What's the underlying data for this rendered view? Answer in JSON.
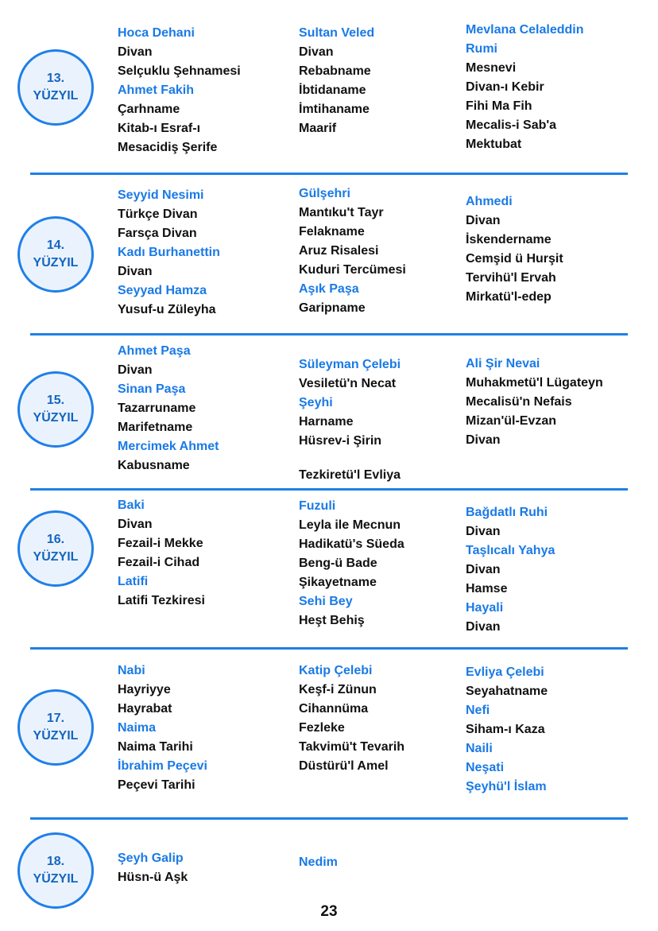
{
  "colors": {
    "accent": "#1f7fe8",
    "author_text": "#1a7ae6",
    "circle_fill": "#eaf3fd"
  },
  "sections": [
    {
      "num": "13.",
      "label": "YÜZYIL",
      "columns": [
        [
          {
            "t": "Hoca Dehani",
            "a": 1
          },
          {
            "t": "Divan"
          },
          {
            "t": "Selçuklu Şehnamesi"
          },
          {
            "t": "Ahmet Fakih",
            "a": 1
          },
          {
            "t": "Çarhname"
          },
          {
            "t": "Kitab-ı Esraf-ı"
          },
          {
            "t": "Mesacidiş Şerife"
          }
        ],
        [
          {
            "t": "Sultan Veled",
            "a": 1
          },
          {
            "t": "Divan"
          },
          {
            "t": "Rebabname"
          },
          {
            "t": "İbtidaname"
          },
          {
            "t": "İmtihaname"
          },
          {
            "t": "Maarif"
          }
        ],
        [
          {
            "t": "Mevlana Celaleddin Rumi",
            "a": 1,
            "w": 1
          },
          {
            "t": "Mesnevi"
          },
          {
            "t": "Divan-ı Kebir"
          },
          {
            "t": "Fihi Ma Fih"
          },
          {
            "t": "Mecalis-i Sab'a"
          },
          {
            "t": "Mektubat"
          }
        ]
      ]
    },
    {
      "num": "14.",
      "label": "YÜZYIL",
      "columns": [
        [
          {
            "t": "Seyyid Nesimi",
            "a": 1
          },
          {
            "t": "Türkçe Divan"
          },
          {
            "t": "Farsça Divan"
          },
          {
            "t": "Kadı Burhanettin",
            "a": 1
          },
          {
            "t": "Divan"
          },
          {
            "t": "Seyyad Hamza",
            "a": 1
          },
          {
            "t": "Yusuf-u Züleyha"
          }
        ],
        [
          {
            "t": "Gülşehri",
            "a": 1
          },
          {
            "t": "Mantıku't Tayr"
          },
          {
            "t": "Felakname"
          },
          {
            "t": "Aruz Risalesi"
          },
          {
            "t": "Kuduri Tercümesi"
          },
          {
            "t": "Aşık Paşa",
            "a": 1
          },
          {
            "t": "Garipname"
          }
        ],
        [
          {
            "t": "Ahmedi",
            "a": 1
          },
          {
            "t": "Divan"
          },
          {
            "t": "İskendername"
          },
          {
            "t": "Cemşid ü Hurşit"
          },
          {
            "t": "Tervihü'l Ervah"
          },
          {
            "t": "Mirkatü'l-edep"
          }
        ]
      ]
    },
    {
      "num": "15.",
      "label": "YÜZYIL",
      "columns": [
        [
          {
            "t": "Ahmet Paşa",
            "a": 1
          },
          {
            "t": "Divan"
          },
          {
            "t": "Sinan Paşa",
            "a": 1
          },
          {
            "t": "Tazarruname"
          },
          {
            "t": "Marifetname"
          },
          {
            "t": "Mercimek Ahmet",
            "a": 1
          },
          {
            "t": "Kabusname"
          }
        ],
        [
          {
            "t": "Süleyman Çelebi",
            "a": 1
          },
          {
            "t": "Vesiletü'n Necat"
          },
          {
            "t": "Şeyhi",
            "a": 1
          },
          {
            "t": "Harname"
          },
          {
            "t": "Hüsrev-i Şirin"
          },
          {
            "g": 1
          },
          {
            "t": "Tezkiretü'l Evliya"
          }
        ],
        [
          {
            "t": "Ali Şir Nevai",
            "a": 1
          },
          {
            "t": "Muhakmetü'l Lügateyn"
          },
          {
            "t": "Mecalisü'n Nefais"
          },
          {
            "t": "Mizan'ül-Evzan"
          },
          {
            "t": "Divan"
          }
        ]
      ]
    },
    {
      "num": "16.",
      "label": "YÜZYIL",
      "columns": [
        [
          {
            "t": "Baki",
            "a": 1
          },
          {
            "t": "Divan"
          },
          {
            "t": "Fezail-i Mekke"
          },
          {
            "t": "Fezail-i Cihad"
          },
          {
            "t": "Latifi",
            "a": 1
          },
          {
            "t": "Latifi Tezkiresi"
          }
        ],
        [
          {
            "t": "Fuzuli",
            "a": 1
          },
          {
            "t": "Leyla ile Mecnun"
          },
          {
            "t": "Hadikatü's Süeda"
          },
          {
            "t": "Beng-ü Bade"
          },
          {
            "t": "Şikayetname"
          },
          {
            "t": "Sehi Bey",
            "a": 1
          },
          {
            "t": "Heşt Behiş"
          }
        ],
        [
          {
            "t": "Bağdatlı Ruhi",
            "a": 1
          },
          {
            "t": "Divan"
          },
          {
            "t": "Taşlıcalı Yahya",
            "a": 1
          },
          {
            "t": "Divan"
          },
          {
            "t": "Hamse"
          },
          {
            "t": "Hayali",
            "a": 1
          },
          {
            "t": "Divan"
          }
        ]
      ]
    },
    {
      "num": "17.",
      "label": "YÜZYIL",
      "columns": [
        [
          {
            "t": "Nabi",
            "a": 1
          },
          {
            "t": "Hayriyye"
          },
          {
            "t": "Hayrabat"
          },
          {
            "t": "Naima",
            "a": 1
          },
          {
            "t": "Naima Tarihi"
          },
          {
            "t": "İbrahim Peçevi",
            "a": 1
          },
          {
            "t": "Peçevi Tarihi"
          }
        ],
        [
          {
            "t": "Katip Çelebi",
            "a": 1
          },
          {
            "t": "Keşf-i Zünun"
          },
          {
            "t": "Cihannüma"
          },
          {
            "t": "Fezleke"
          },
          {
            "t": "Takvimü't Tevarih"
          },
          {
            "t": "Düstürü'l Amel"
          }
        ],
        [
          {
            "t": "Evliya Çelebi",
            "a": 1
          },
          {
            "t": "Seyahatname"
          },
          {
            "t": "Nefi",
            "a": 1
          },
          {
            "t": "Siham-ı Kaza"
          },
          {
            "t": "Naili",
            "a": 1
          },
          {
            "t": "Neşati",
            "a": 1
          },
          {
            "t": "Şeyhü'l İslam",
            "a": 1
          }
        ]
      ]
    },
    {
      "num": "18.",
      "label": "YÜZYIL",
      "columns": [
        [
          {
            "t": "Şeyh Galip",
            "a": 1
          },
          {
            "t": "Hüsn-ü Aşk"
          }
        ],
        [
          {
            "t": "Nedim",
            "a": 1
          }
        ],
        []
      ]
    }
  ],
  "page_number": "23"
}
